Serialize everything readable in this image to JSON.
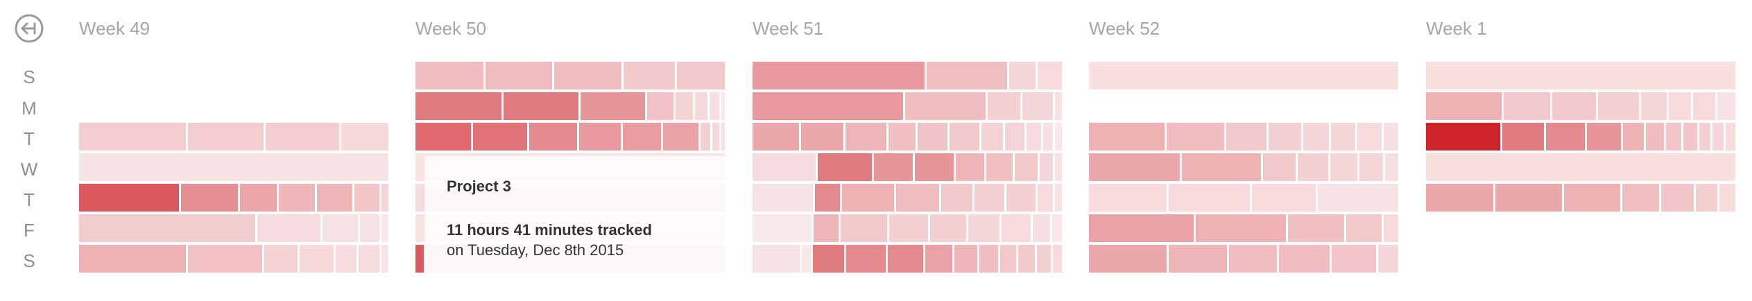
{
  "back_button": {
    "icon": "arrow-left-circle-icon"
  },
  "day_labels": [
    "S",
    "M",
    "T",
    "W",
    "T",
    "F",
    "S"
  ],
  "colors": {
    "lightest": "#fae6e8",
    "light": "#f4d6d8",
    "mid_light": "#f0c3c6",
    "mid": "#ebaaad",
    "mid_dark": "#e8979b",
    "dark": "#e07a7e",
    "darker": "#da5b5f",
    "darkest": "#d0242c",
    "axis_text": "#8f8f8f",
    "week_title": "#a6a6a6"
  },
  "weeks": [
    {
      "title": "Week 49",
      "days": [
        {
          "day": "S",
          "segments": []
        },
        {
          "day": "M",
          "segments": []
        },
        {
          "day": "T",
          "segments": [
            {
              "w": 152,
              "c": "#f4cdd0"
            },
            {
              "w": 108,
              "c": "#f4cdd0"
            },
            {
              "w": 105,
              "c": "#f4cdd0"
            },
            {
              "w": 67,
              "c": "#f6d9db"
            }
          ]
        },
        {
          "day": "W",
          "segments": [
            {
              "w": 446,
              "c": "#f8e3e4"
            }
          ]
        },
        {
          "day": "T",
          "segments": [
            {
              "w": 143,
              "c": "#dc5a5f"
            },
            {
              "w": 82,
              "c": "#e48f93"
            },
            {
              "w": 53,
              "c": "#eaa6a9"
            },
            {
              "w": 51,
              "c": "#eeb6b9"
            },
            {
              "w": 51,
              "c": "#eeb6b9"
            },
            {
              "w": 36,
              "c": "#f1c4c6"
            },
            {
              "w": 10,
              "c": "#f4d4d6"
            }
          ]
        },
        {
          "day": "F",
          "segments": [
            {
              "w": 256,
              "c": "#f2cdd0"
            },
            {
              "w": 91,
              "c": "#f6dcde"
            },
            {
              "w": 52,
              "c": "#f7e2e3"
            },
            {
              "w": 28,
              "c": "#f7e2e3"
            },
            {
              "w": 10,
              "c": "#f9e9ea"
            }
          ]
        },
        {
          "day": "S",
          "segments": [
            {
              "w": 153,
              "c": "#eeb1b4"
            },
            {
              "w": 107,
              "c": "#f1c1c4"
            },
            {
              "w": 48,
              "c": "#f4d1d3"
            },
            {
              "w": 48,
              "c": "#f5d8da"
            },
            {
              "w": 30,
              "c": "#f6dcdd"
            },
            {
              "w": 30,
              "c": "#f6dcdd"
            },
            {
              "w": 10,
              "c": "#f8e4e5"
            }
          ]
        }
      ]
    },
    {
      "title": "Week 50",
      "days": [
        {
          "day": "S",
          "segments": [
            {
              "w": 97,
              "c": "#f0bcbf"
            },
            {
              "w": 96,
              "c": "#f0bcbf"
            },
            {
              "w": 96,
              "c": "#f0bcbf"
            },
            {
              "w": 74,
              "c": "#f3c9cc"
            },
            {
              "w": 68,
              "c": "#f3c9cc"
            }
          ]
        },
        {
          "day": "M",
          "segments": [
            {
              "w": 124,
              "c": "#e07a7e"
            },
            {
              "w": 108,
              "c": "#e07a7e"
            },
            {
              "w": 93,
              "c": "#e8959a"
            },
            {
              "w": 38,
              "c": "#f1c3c6"
            },
            {
              "w": 25,
              "c": "#f4d3d5"
            },
            {
              "w": 18,
              "c": "#f5d8da"
            },
            {
              "w": 14,
              "c": "#f7e0e2"
            },
            {
              "w": 5,
              "c": "#f9e8e9"
            }
          ]
        },
        {
          "day": "T",
          "segments": [
            {
              "w": 81,
              "c": "#e06a6f"
            },
            {
              "w": 78,
              "c": "#e07479"
            },
            {
              "w": 70,
              "c": "#e58a8f"
            },
            {
              "w": 60,
              "c": "#e99a9e"
            },
            {
              "w": 55,
              "c": "#ea9da1"
            },
            {
              "w": 52,
              "c": "#eba2a6"
            },
            {
              "w": 14,
              "c": "#f3cfd1"
            },
            {
              "w": 10,
              "c": "#f5d8da"
            },
            {
              "w": 5,
              "c": "#f8e3e4"
            }
          ]
        },
        {
          "day": "W",
          "segments": [
            {
              "w": 446,
              "c": "#f8e3e4"
            }
          ]
        },
        {
          "day": "T",
          "segments": [
            {
              "w": 446,
              "c": "#f6dcde"
            }
          ]
        },
        {
          "day": "F",
          "segments": [
            {
              "w": 446,
              "c": "#f8e3e4"
            }
          ]
        },
        {
          "day": "S",
          "segments": [
            {
              "w": 12,
              "c": "#da5b5f"
            },
            {
              "w": 434,
              "c": "#f6d9db"
            }
          ]
        }
      ]
    },
    {
      "title": "Week 51",
      "days": [
        {
          "day": "S",
          "segments": [
            {
              "w": 248,
              "c": "#e89a9e"
            },
            {
              "w": 116,
              "c": "#f0bfc2"
            },
            {
              "w": 38,
              "c": "#f5d6d8"
            },
            {
              "w": 35,
              "c": "#f6dadc"
            }
          ]
        },
        {
          "day": "M",
          "segments": [
            {
              "w": 220,
              "c": "#e89a9e"
            },
            {
              "w": 118,
              "c": "#f0bdc0"
            },
            {
              "w": 47,
              "c": "#f4d0d3"
            },
            {
              "w": 45,
              "c": "#f5d6d8"
            },
            {
              "w": 10,
              "c": "#f7e0e2"
            }
          ]
        },
        {
          "day": "T",
          "segments": [
            {
              "w": 71,
              "c": "#eba8ab"
            },
            {
              "w": 64,
              "c": "#eba8ab"
            },
            {
              "w": 62,
              "c": "#eeb5b8"
            },
            {
              "w": 42,
              "c": "#f0c0c3"
            },
            {
              "w": 45,
              "c": "#f0c3c6"
            },
            {
              "w": 45,
              "c": "#f2c8ca"
            },
            {
              "w": 33,
              "c": "#f4d1d3"
            },
            {
              "w": 30,
              "c": "#f4d4d6"
            },
            {
              "w": 22,
              "c": "#f6dbdd"
            },
            {
              "w": 15,
              "c": "#f7e0e2"
            },
            {
              "w": 10,
              "c": "#f9e8e9"
            }
          ]
        },
        {
          "day": "W",
          "segments": [
            {
              "w": 95,
              "c": "#f6dcde"
            },
            {
              "w": 82,
              "c": "#e07a7e"
            },
            {
              "w": 59,
              "c": "#e8959a"
            },
            {
              "w": 58,
              "c": "#e8959a"
            },
            {
              "w": 43,
              "c": "#eeb5b8"
            },
            {
              "w": 40,
              "c": "#f0bfc2"
            },
            {
              "w": 35,
              "c": "#f2c8ca"
            },
            {
              "w": 20,
              "c": "#f5d6d8"
            },
            {
              "w": 10,
              "c": "#f8e3e4"
            }
          ]
        },
        {
          "day": "T",
          "segments": [
            {
              "w": 90,
              "c": "#f8e3e4"
            },
            {
              "w": 38,
              "c": "#e48a8f"
            },
            {
              "w": 78,
              "c": "#ee b1b4"
            },
            {
              "w": 64,
              "c": "#f0bcbf"
            },
            {
              "w": 47,
              "c": "#f2c8ca"
            },
            {
              "w": 44,
              "c": "#f4d0d3"
            },
            {
              "w": 44,
              "c": "#f4d0d3"
            },
            {
              "w": 23,
              "c": "#f6dbdd"
            },
            {
              "w": 10,
              "c": "#f8e3e4"
            }
          ]
        },
        {
          "day": "F",
          "segments": [
            {
              "w": 90,
              "c": "#fae9ea"
            },
            {
              "w": 38,
              "c": "#eeb5b8"
            },
            {
              "w": 72,
              "c": "#f2c8ca"
            },
            {
              "w": 59,
              "c": "#f4d0d3"
            },
            {
              "w": 55,
              "c": "#f4d0d3"
            },
            {
              "w": 48,
              "c": "#f5d6d8"
            },
            {
              "w": 45,
              "c": "#f6dadc"
            },
            {
              "w": 26,
              "c": "#f7e0e2"
            },
            {
              "w": 15,
              "c": "#f9e8e9"
            }
          ]
        },
        {
          "day": "S",
          "segments": [
            {
              "w": 73,
              "c": "#f8e3e4"
            },
            {
              "w": 15,
              "c": "#f9e8e9"
            },
            {
              "w": 48,
              "c": "#e07a7e"
            },
            {
              "w": 62,
              "c": "#e48a8f"
            },
            {
              "w": 55,
              "c": "#e48a8f"
            },
            {
              "w": 42,
              "c": "#eba2a6"
            },
            {
              "w": 35,
              "c": "#eeb5b8"
            },
            {
              "w": 30,
              "c": "#f0bdc0"
            },
            {
              "w": 25,
              "c": "#f2c8ca"
            },
            {
              "w": 25,
              "c": "#f2c8ca"
            },
            {
              "w": 22,
              "c": "#f4d0d3"
            },
            {
              "w": 14,
              "c": "#f6dadc"
            }
          ]
        }
      ]
    },
    {
      "title": "Week 52",
      "days": [
        {
          "day": "S",
          "segments": [
            {
              "w": 446,
              "c": "#f8dfe0"
            }
          ]
        },
        {
          "day": "M",
          "segments": []
        },
        {
          "day": "T",
          "segments": [
            {
              "w": 112,
              "c": "#eeb1b4"
            },
            {
              "w": 85,
              "c": "#f0bcbf"
            },
            {
              "w": 60,
              "c": "#f2c8ca"
            },
            {
              "w": 48,
              "c": "#f4d0d3"
            },
            {
              "w": 38,
              "c": "#f5d6d8"
            },
            {
              "w": 36,
              "c": "#f5d6d8"
            },
            {
              "w": 36,
              "c": "#f6dadc"
            },
            {
              "w": 22,
              "c": "#f7e0e2"
            }
          ]
        },
        {
          "day": "W",
          "segments": [
            {
              "w": 134,
              "c": "#eba8ab"
            },
            {
              "w": 116,
              "c": "#eeb1b4"
            },
            {
              "w": 48,
              "c": "#f2c8ca"
            },
            {
              "w": 45,
              "c": "#f4d0d3"
            },
            {
              "w": 40,
              "c": "#f5d6d8"
            },
            {
              "w": 35,
              "c": "#f5d6d8"
            },
            {
              "w": 19,
              "c": "#f7e0e2"
            }
          ]
        },
        {
          "day": "T",
          "segments": [
            {
              "w": 112,
              "c": "#f6dadc"
            },
            {
              "w": 117,
              "c": "#f6dadc"
            },
            {
              "w": 92,
              "c": "#f6dadc"
            },
            {
              "w": 116,
              "c": "#f8e3e4"
            }
          ]
        },
        {
          "day": "F",
          "segments": [
            {
              "w": 149,
              "c": "#eba2a6"
            },
            {
              "w": 128,
              "c": "#eeb1b4"
            },
            {
              "w": 80,
              "c": "#f0bfc2"
            },
            {
              "w": 50,
              "c": "#f2c8ca"
            },
            {
              "w": 21,
              "c": "#f6dadc"
            }
          ]
        },
        {
          "day": "S",
          "segments": [
            {
              "w": 112,
              "c": "#eba8ab"
            },
            {
              "w": 84,
              "c": "#eeb5b8"
            },
            {
              "w": 68,
              "c": "#f0bdc0"
            },
            {
              "w": 73,
              "c": "#f0bdc0"
            },
            {
              "w": 64,
              "c": "#f2c6c8"
            },
            {
              "w": 29,
              "c": "#f5d6d8"
            }
          ]
        }
      ]
    },
    {
      "title": "Week 1",
      "days": [
        {
          "day": "S",
          "segments": [
            {
              "w": 446,
              "c": "#f8dfe0"
            }
          ]
        },
        {
          "day": "M",
          "segments": [
            {
              "w": 110,
              "c": "#eeb1b4"
            },
            {
              "w": 67,
              "c": "#f2c8ca"
            },
            {
              "w": 63,
              "c": "#f2c8ca"
            },
            {
              "w": 59,
              "c": "#f4d0d3"
            },
            {
              "w": 38,
              "c": "#f5d6d8"
            },
            {
              "w": 32,
              "c": "#f6dadc"
            },
            {
              "w": 32,
              "c": "#f6dadc"
            },
            {
              "w": 26,
              "c": "#f8e3e4"
            }
          ]
        },
        {
          "day": "T",
          "segments": [
            {
              "w": 113,
              "c": "#d0242c"
            },
            {
              "w": 64,
              "c": "#e07a7e"
            },
            {
              "w": 59,
              "c": "#e48a8f"
            },
            {
              "w": 52,
              "c": "#e8959a"
            },
            {
              "w": 31,
              "c": "#eeb1b4"
            },
            {
              "w": 28,
              "c": "#f0bcbf"
            },
            {
              "w": 23,
              "c": "#f2c6c8"
            },
            {
              "w": 21,
              "c": "#f2c6c8"
            },
            {
              "w": 17,
              "c": "#f4d0d3"
            },
            {
              "w": 17,
              "c": "#f5d6d8"
            },
            {
              "w": 15,
              "c": "#f6dadc"
            }
          ]
        },
        {
          "day": "W",
          "segments": [
            {
              "w": 446,
              "c": "#f8dfe0"
            }
          ]
        },
        {
          "day": "T",
          "segments": [
            {
              "w": 100,
              "c": "#eba8ab"
            },
            {
              "w": 99,
              "c": "#eba8ab"
            },
            {
              "w": 84,
              "c": "#eeb1b4"
            },
            {
              "w": 55,
              "c": "#f0bfc2"
            },
            {
              "w": 48,
              "c": "#f2c6c8"
            },
            {
              "w": 32,
              "c": "#f4d0d3"
            },
            {
              "w": 24,
              "c": "#f6dadc"
            }
          ]
        },
        {
          "day": "F",
          "segments": []
        },
        {
          "day": "S",
          "segments": []
        }
      ]
    }
  ],
  "tooltip": {
    "project": "Project 3",
    "duration": "11 hours 41 minutes tracked",
    "date": "on Tuesday, Dec 8th 2015"
  }
}
